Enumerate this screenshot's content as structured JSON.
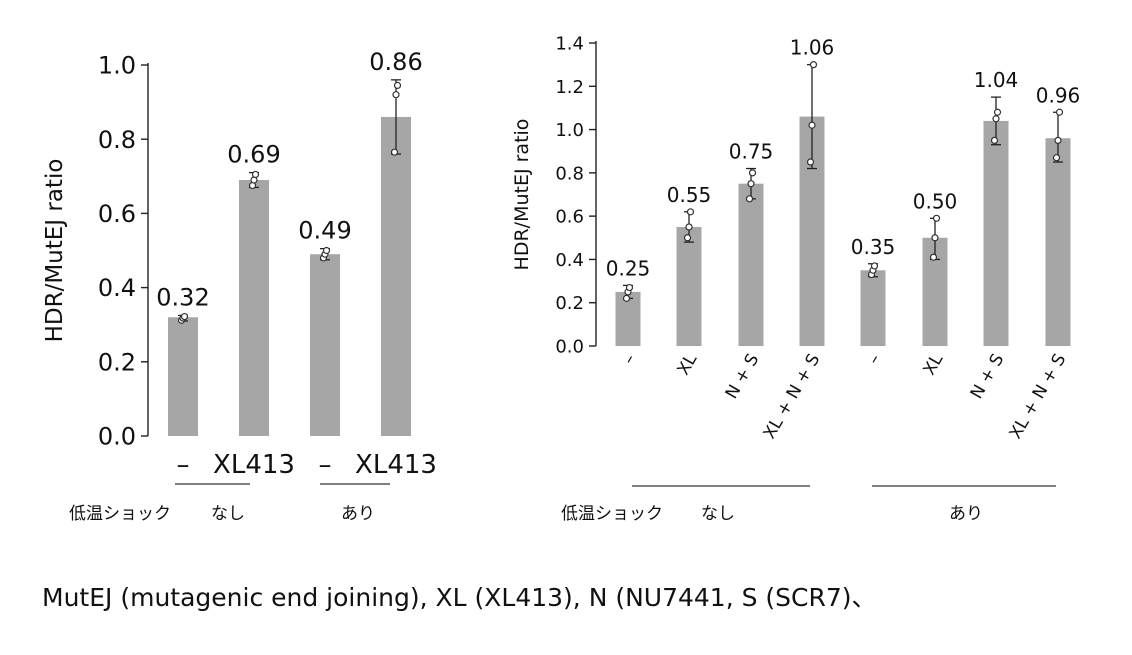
{
  "chart_data": [
    {
      "type": "bar",
      "ylabel": "HDR/MutEJ ratio",
      "ylim": [
        0,
        1.0
      ],
      "yticks": [
        "0.0",
        "0.2",
        "0.4",
        "0.6",
        "0.8",
        "1.0"
      ],
      "grid": false,
      "categories": [
        "–",
        "XL413",
        "–",
        "XL413"
      ],
      "values": [
        0.32,
        0.69,
        0.49,
        0.86
      ],
      "value_labels": [
        "0.32",
        "0.69",
        "0.49",
        "0.86"
      ],
      "error_bars": [
        [
          0.31,
          0.325
        ],
        [
          0.67,
          0.71
        ],
        [
          0.475,
          0.505
        ],
        [
          0.76,
          0.96
        ]
      ],
      "points": [
        [
          0.312,
          0.318,
          0.322
        ],
        [
          0.675,
          0.69,
          0.705
        ],
        [
          0.48,
          0.49,
          0.5
        ],
        [
          0.765,
          0.92,
          0.945
        ]
      ],
      "groups": [
        {
          "label": "低温ショック",
          "members": []
        },
        {
          "label": "なし",
          "members": [
            0,
            1
          ]
        },
        {
          "label": "あり",
          "members": [
            2,
            3
          ]
        }
      ],
      "bar_color": "#a6a6a6"
    },
    {
      "type": "bar",
      "ylabel": "HDR/MutEJ ratio",
      "ylim": [
        0,
        1.4
      ],
      "yticks": [
        "0.0",
        "0.2",
        "0.4",
        "0.6",
        "0.8",
        "1.0",
        "1.2",
        "1.4"
      ],
      "grid": false,
      "categories": [
        "–",
        "XL",
        "N + S",
        "XL + N + S",
        "–",
        "XL",
        "N + S",
        "XL + N + S"
      ],
      "values": [
        0.25,
        0.55,
        0.75,
        1.06,
        0.35,
        0.5,
        1.04,
        0.96
      ],
      "value_labels": [
        "0.25",
        "0.55",
        "0.75",
        "1.06",
        "0.35",
        "0.50",
        "1.04",
        "0.96"
      ],
      "error_bars": [
        [
          0.22,
          0.28
        ],
        [
          0.48,
          0.62
        ],
        [
          0.68,
          0.82
        ],
        [
          0.82,
          1.3
        ],
        [
          0.32,
          0.38
        ],
        [
          0.4,
          0.59
        ],
        [
          0.93,
          1.15
        ],
        [
          0.85,
          1.08
        ]
      ],
      "points": [
        [
          0.22,
          0.25,
          0.27
        ],
        [
          0.5,
          0.55,
          0.62
        ],
        [
          0.68,
          0.75,
          0.8
        ],
        [
          0.85,
          1.02,
          1.3
        ],
        [
          0.33,
          0.35,
          0.37
        ],
        [
          0.41,
          0.5,
          0.59
        ],
        [
          0.95,
          1.05,
          1.08
        ],
        [
          0.87,
          0.95,
          1.08
        ]
      ],
      "groups": [
        {
          "label": "低温ショック",
          "members": []
        },
        {
          "label": "なし",
          "members": [
            0,
            1,
            2,
            3
          ]
        },
        {
          "label": "あり",
          "members": [
            4,
            5,
            6,
            7
          ]
        }
      ],
      "bar_color": "#a6a6a6"
    }
  ],
  "caption": "MutEJ (mutagenic end joining), XL (XL413), N (NU7441, S (SCR7)、"
}
